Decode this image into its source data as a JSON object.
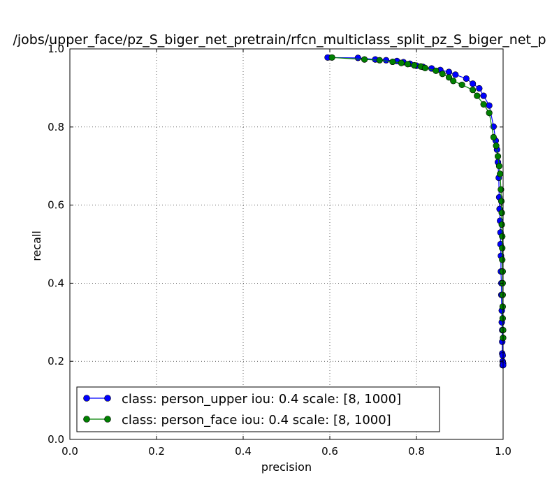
{
  "chart_data": {
    "type": "line",
    "title": "/jobs/upper_face/pz_S_biger_net_pretrain/rfcn_multiclass_split_pz_S_biger_net_p",
    "xlabel": "precision",
    "ylabel": "recall",
    "xlim": [
      0.0,
      1.0
    ],
    "ylim": [
      0.0,
      1.0
    ],
    "xticks": [
      "0.0",
      "0.2",
      "0.4",
      "0.6",
      "0.8",
      "1.0"
    ],
    "yticks": [
      "0.0",
      "0.2",
      "0.4",
      "0.6",
      "0.8",
      "1.0"
    ],
    "grid": true,
    "legend_position": "lower-left",
    "series": [
      {
        "name": "class: person_upper iou: 0.4 scale: [8, 1000]",
        "color": "#0000ff",
        "x": [
          0.595,
          0.665,
          0.705,
          0.73,
          0.755,
          0.77,
          0.785,
          0.8,
          0.815,
          0.835,
          0.855,
          0.875,
          0.89,
          0.915,
          0.93,
          0.945,
          0.955,
          0.968,
          0.978,
          0.983,
          0.986,
          0.988,
          0.99,
          0.991,
          0.992,
          0.993,
          0.994,
          0.994,
          0.995,
          0.995,
          0.996,
          0.996,
          0.997,
          0.997,
          0.998,
          0.998,
          0.998,
          0.999,
          0.999,
          0.999,
          1.0,
          1.0
        ],
        "y": [
          0.978,
          0.977,
          0.973,
          0.971,
          0.969,
          0.966,
          0.962,
          0.957,
          0.954,
          0.95,
          0.946,
          0.941,
          0.934,
          0.924,
          0.911,
          0.899,
          0.88,
          0.855,
          0.801,
          0.765,
          0.742,
          0.71,
          0.67,
          0.62,
          0.59,
          0.56,
          0.53,
          0.5,
          0.47,
          0.43,
          0.4,
          0.37,
          0.33,
          0.3,
          0.28,
          0.25,
          0.22,
          0.2,
          0.19,
          0.215,
          0.195,
          0.19
        ]
      },
      {
        "name": "class: person_face iou: 0.4 scale: [8, 1000]",
        "color": "#008000",
        "x": [
          0.605,
          0.68,
          0.715,
          0.745,
          0.765,
          0.78,
          0.795,
          0.81,
          0.82,
          0.845,
          0.86,
          0.875,
          0.885,
          0.905,
          0.93,
          0.94,
          0.955,
          0.968,
          0.978,
          0.984,
          0.988,
          0.991,
          0.993,
          0.995,
          0.996,
          0.997,
          0.997,
          0.998,
          0.998,
          0.998,
          0.999,
          0.999,
          0.999,
          0.999,
          0.999,
          1.0,
          1.0
        ],
        "y": [
          0.978,
          0.973,
          0.971,
          0.967,
          0.964,
          0.961,
          0.958,
          0.955,
          0.951,
          0.944,
          0.936,
          0.927,
          0.918,
          0.908,
          0.895,
          0.88,
          0.858,
          0.836,
          0.774,
          0.752,
          0.725,
          0.7,
          0.68,
          0.64,
          0.61,
          0.58,
          0.55,
          0.52,
          0.49,
          0.46,
          0.43,
          0.4,
          0.37,
          0.34,
          0.31,
          0.28,
          0.26
        ]
      }
    ]
  }
}
